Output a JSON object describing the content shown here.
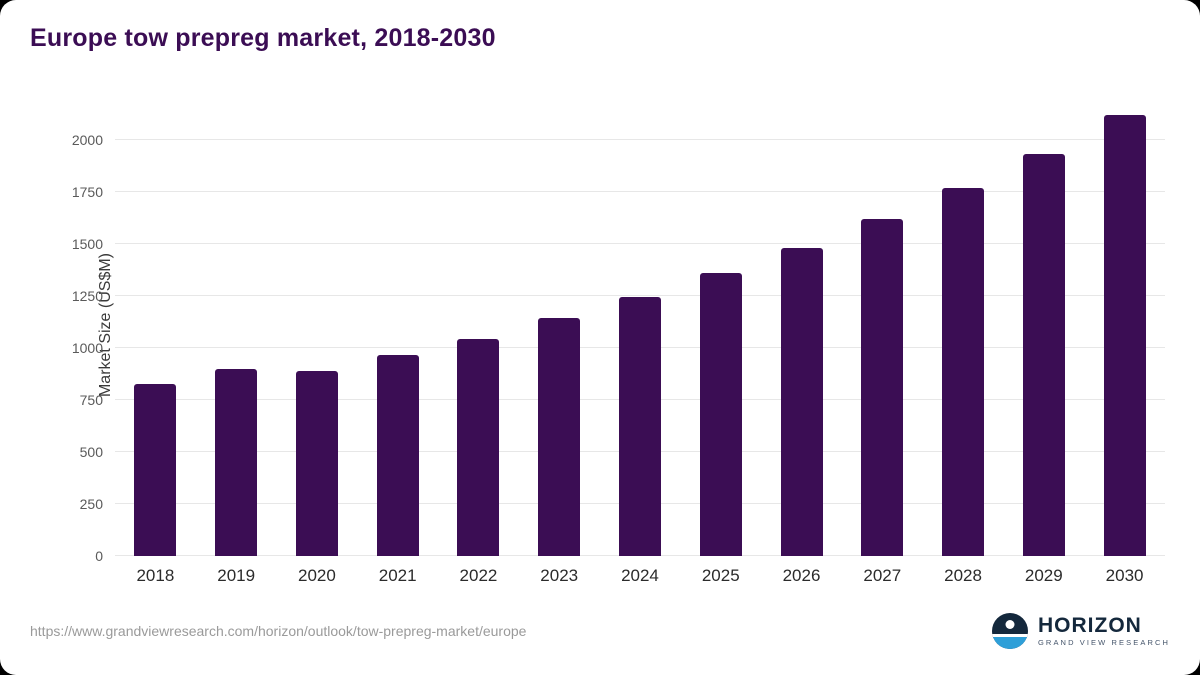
{
  "title": "Europe tow prepreg market, 2018-2030",
  "footer": {
    "source_url": "https://www.grandviewresearch.com/horizon/outlook/tow-prepreg-market/europe",
    "logo_name": "HORIZON",
    "logo_subtitle": "GRAND VIEW RESEARCH"
  },
  "colors": {
    "bar": "#3b0d54",
    "title": "#3b0d54",
    "gridline": "#e7e7e7",
    "axis_text": "#5a5a5a",
    "logo_navy": "#14283c",
    "logo_blue": "#2e9fd8"
  },
  "chart_data": {
    "type": "bar",
    "title": "Europe tow prepreg market, 2018-2030",
    "categories": [
      "2018",
      "2019",
      "2020",
      "2021",
      "2022",
      "2023",
      "2024",
      "2025",
      "2026",
      "2027",
      "2028",
      "2029",
      "2030"
    ],
    "values": [
      825,
      900,
      890,
      965,
      1045,
      1145,
      1245,
      1360,
      1480,
      1620,
      1770,
      1935,
      2120
    ],
    "xlabel": "",
    "ylabel": "Market Size (US$M)",
    "yticks": [
      0,
      250,
      500,
      750,
      1000,
      1250,
      1500,
      1750,
      2000
    ],
    "ylim": [
      0,
      2155
    ],
    "grid": true,
    "legend": false,
    "bar_color": "#3b0d54"
  }
}
